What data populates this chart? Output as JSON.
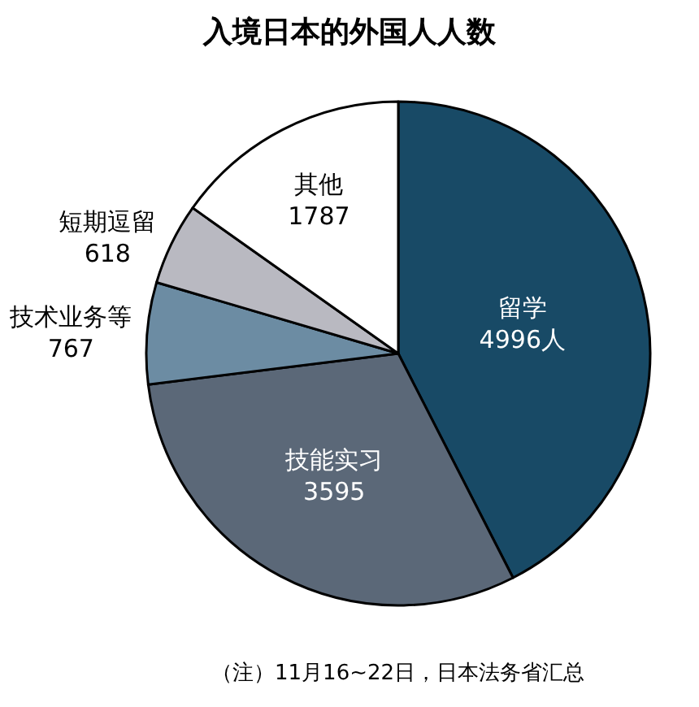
{
  "chart_data": {
    "type": "pie",
    "title": "入境日本的外国人人数",
    "categories": [
      "留学",
      "技能实习",
      "技术业务等",
      "短期逗留",
      "其他"
    ],
    "values": [
      4996,
      3595,
      767,
      618,
      1787
    ],
    "value_labels": [
      "4996人",
      "3595",
      "767",
      "618",
      "1787"
    ],
    "colors": [
      "#184a66",
      "#5b6878",
      "#6c8ca3",
      "#b9b9c1",
      "#ffffff"
    ],
    "legend": false,
    "annotations": [
      "（注）11月16~22日，日本法务省汇总"
    ]
  }
}
